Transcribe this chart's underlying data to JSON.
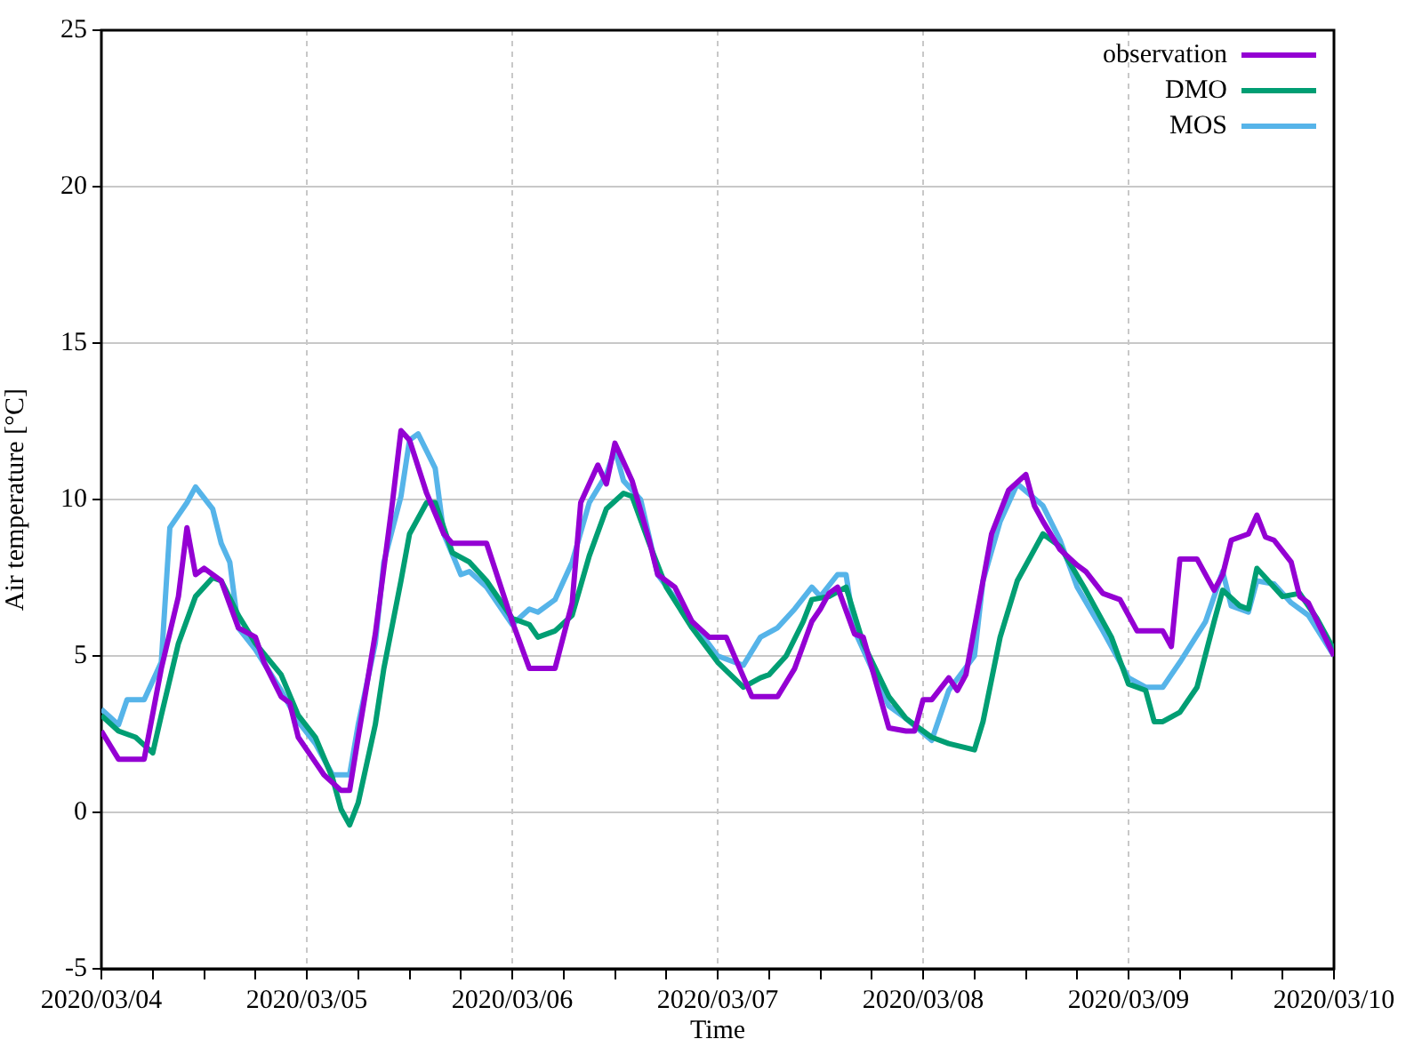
{
  "chart_data": {
    "type": "line",
    "xlabel": "Time",
    "ylabel": "Air temperature [°C]",
    "xlim": [
      "2020-03-04",
      "2020-03-10"
    ],
    "xticks": [
      {
        "value": "2020-03-04",
        "label": "2020/03/04"
      },
      {
        "value": "2020-03-04T06:00",
        "label": null
      },
      {
        "value": "2020-03-04T12:00",
        "label": null
      },
      {
        "value": "2020-03-04T18:00",
        "label": null
      },
      {
        "value": "2020-03-05",
        "label": "2020/03/05"
      },
      {
        "value": "2020-03-05T06:00",
        "label": null
      },
      {
        "value": "2020-03-05T12:00",
        "label": null
      },
      {
        "value": "2020-03-05T18:00",
        "label": null
      },
      {
        "value": "2020-03-06",
        "label": "2020/03/06"
      },
      {
        "value": "2020-03-06T06:00",
        "label": null
      },
      {
        "value": "2020-03-06T12:00",
        "label": null
      },
      {
        "value": "2020-03-06T18:00",
        "label": null
      },
      {
        "value": "2020-03-07",
        "label": "2020/03/07"
      },
      {
        "value": "2020-03-07T06:00",
        "label": null
      },
      {
        "value": "2020-03-07T12:00",
        "label": null
      },
      {
        "value": "2020-03-07T18:00",
        "label": null
      },
      {
        "value": "2020-03-08",
        "label": "2020/03/08"
      },
      {
        "value": "2020-03-08T06:00",
        "label": null
      },
      {
        "value": "2020-03-08T12:00",
        "label": null
      },
      {
        "value": "2020-03-08T18:00",
        "label": null
      },
      {
        "value": "2020-03-09",
        "label": "2020/03/09"
      },
      {
        "value": "2020-03-09T06:00",
        "label": null
      },
      {
        "value": "2020-03-09T12:00",
        "label": null
      },
      {
        "value": "2020-03-09T18:00",
        "label": null
      },
      {
        "value": "2020-03-10",
        "label": "2020/03/10"
      }
    ],
    "ylim": [
      -5,
      25
    ],
    "yticks": [
      -5,
      0,
      5,
      10,
      15,
      20,
      25
    ],
    "grid": true,
    "legend": "top right",
    "series": [
      {
        "name": "observation",
        "color": "#9400d3",
        "x": [
          "2020-03-04T00:00",
          "2020-03-04T02:00",
          "2020-03-04T05:00",
          "2020-03-04T07:00",
          "2020-03-04T09:00",
          "2020-03-04T10:00",
          "2020-03-04T11:00",
          "2020-03-04T12:00",
          "2020-03-04T14:00",
          "2020-03-04T16:00",
          "2020-03-04T18:00",
          "2020-03-04T19:00",
          "2020-03-04T21:00",
          "2020-03-04T22:00",
          "2020-03-04T23:00",
          "2020-03-05T01:00",
          "2020-03-05T02:00",
          "2020-03-05T04:00",
          "2020-03-05T05:00",
          "2020-03-05T06:00",
          "2020-03-05T08:00",
          "2020-03-05T10:00",
          "2020-03-05T11:00",
          "2020-03-05T12:00",
          "2020-03-05T14:00",
          "2020-03-05T16:00",
          "2020-03-05T17:00",
          "2020-03-05T21:00",
          "2020-03-06T00:00",
          "2020-03-06T02:00",
          "2020-03-06T05:00",
          "2020-03-06T07:00",
          "2020-03-06T08:00",
          "2020-03-06T10:00",
          "2020-03-06T11:00",
          "2020-03-06T12:00",
          "2020-03-06T14:00",
          "2020-03-06T16:00",
          "2020-03-06T17:00",
          "2020-03-06T19:00",
          "2020-03-06T21:00",
          "2020-03-06T23:00",
          "2020-03-07T01:00",
          "2020-03-07T04:00",
          "2020-03-07T07:00",
          "2020-03-07T09:00",
          "2020-03-07T11:00",
          "2020-03-07T12:00",
          "2020-03-07T13:00",
          "2020-03-07T14:00",
          "2020-03-07T16:00",
          "2020-03-07T17:00",
          "2020-03-07T20:00",
          "2020-03-07T22:00",
          "2020-03-07T23:00",
          "2020-03-08T00:00",
          "2020-03-08T01:00",
          "2020-03-08T03:00",
          "2020-03-08T04:00",
          "2020-03-08T05:00",
          "2020-03-08T07:00",
          "2020-03-08T08:00",
          "2020-03-08T10:00",
          "2020-03-08T12:00",
          "2020-03-08T13:00",
          "2020-03-08T14:00",
          "2020-03-08T16:00",
          "2020-03-08T18:00",
          "2020-03-08T19:00",
          "2020-03-08T21:00",
          "2020-03-08T23:00",
          "2020-03-09T01:00",
          "2020-03-09T04:00",
          "2020-03-09T05:00",
          "2020-03-09T06:00",
          "2020-03-09T08:00",
          "2020-03-09T10:00",
          "2020-03-09T11:00",
          "2020-03-09T12:00",
          "2020-03-09T14:00",
          "2020-03-09T15:00",
          "2020-03-09T16:00",
          "2020-03-09T17:00",
          "2020-03-09T19:00",
          "2020-03-09T20:00",
          "2020-03-09T21:00",
          "2020-03-10T00:00"
        ],
        "values": [
          2.6,
          1.7,
          1.7,
          4.6,
          6.9,
          9.1,
          7.6,
          7.8,
          7.4,
          5.9,
          5.6,
          4.8,
          3.7,
          3.5,
          2.4,
          1.6,
          1.2,
          0.7,
          0.7,
          2.4,
          5.7,
          9.9,
          12.2,
          11.9,
          10.2,
          8.9,
          8.6,
          8.6,
          6.1,
          4.6,
          4.6,
          6.7,
          9.9,
          11.1,
          10.5,
          11.8,
          10.6,
          8.7,
          7.6,
          7.2,
          6.1,
          5.6,
          5.6,
          3.7,
          3.7,
          4.6,
          6.1,
          6.5,
          7.0,
          7.2,
          5.7,
          5.6,
          2.7,
          2.6,
          2.6,
          3.6,
          3.6,
          4.3,
          3.9,
          4.4,
          7.4,
          8.9,
          10.3,
          10.8,
          9.8,
          9.3,
          8.4,
          7.9,
          7.7,
          7.0,
          6.8,
          5.8,
          5.8,
          5.3,
          8.1,
          8.1,
          7.1,
          7.6,
          8.7,
          8.9,
          9.5,
          8.8,
          8.7,
          8.0,
          6.9,
          6.7,
          5.0
        ]
      },
      {
        "name": "DMO",
        "color": "#009e73",
        "x": [
          "2020-03-04T00:00",
          "2020-03-04T02:00",
          "2020-03-04T04:00",
          "2020-03-04T06:00",
          "2020-03-04T07:00",
          "2020-03-04T09:00",
          "2020-03-04T11:00",
          "2020-03-04T13:00",
          "2020-03-04T14:00",
          "2020-03-04T16:00",
          "2020-03-04T18:00",
          "2020-03-04T21:00",
          "2020-03-04T23:00",
          "2020-03-05T01:00",
          "2020-03-05T03:00",
          "2020-03-05T04:00",
          "2020-03-05T05:00",
          "2020-03-05T06:00",
          "2020-03-05T08:00",
          "2020-03-05T09:00",
          "2020-03-05T11:00",
          "2020-03-05T12:00",
          "2020-03-05T14:00",
          "2020-03-05T15:00",
          "2020-03-05T17:00",
          "2020-03-05T19:00",
          "2020-03-05T21:00",
          "2020-03-06T00:00",
          "2020-03-06T02:00",
          "2020-03-06T03:00",
          "2020-03-06T05:00",
          "2020-03-06T07:00",
          "2020-03-06T09:00",
          "2020-03-06T11:00",
          "2020-03-06T13:00",
          "2020-03-06T14:00",
          "2020-03-06T16:00",
          "2020-03-06T18:00",
          "2020-03-06T21:00",
          "2020-03-07T00:00",
          "2020-03-07T03:00",
          "2020-03-07T05:00",
          "2020-03-07T06:00",
          "2020-03-07T08:00",
          "2020-03-07T10:00",
          "2020-03-07T11:00",
          "2020-03-07T13:00",
          "2020-03-07T15:00",
          "2020-03-07T17:00",
          "2020-03-07T20:00",
          "2020-03-07T22:00",
          "2020-03-08T01:00",
          "2020-03-08T03:00",
          "2020-03-08T06:00",
          "2020-03-08T07:00",
          "2020-03-08T09:00",
          "2020-03-08T11:00",
          "2020-03-08T13:00",
          "2020-03-08T14:00",
          "2020-03-08T16:00",
          "2020-03-08T19:00",
          "2020-03-08T22:00",
          "2020-03-09T00:00",
          "2020-03-09T02:00",
          "2020-03-09T03:00",
          "2020-03-09T04:00",
          "2020-03-09T06:00",
          "2020-03-09T08:00",
          "2020-03-09T10:00",
          "2020-03-09T11:00",
          "2020-03-09T13:00",
          "2020-03-09T14:00",
          "2020-03-09T15:00",
          "2020-03-09T16:00",
          "2020-03-09T18:00",
          "2020-03-09T20:00",
          "2020-03-09T22:00",
          "2020-03-10T00:00"
        ],
        "values": [
          3.1,
          2.6,
          2.4,
          1.9,
          3.1,
          5.4,
          6.9,
          7.5,
          7.4,
          6.3,
          5.4,
          4.4,
          3.1,
          2.4,
          1.1,
          0.1,
          -0.4,
          0.3,
          2.8,
          4.6,
          7.4,
          8.9,
          9.9,
          9.9,
          8.3,
          8.0,
          7.4,
          6.2,
          6.0,
          5.6,
          5.8,
          6.3,
          8.2,
          9.7,
          10.2,
          10.1,
          8.6,
          7.2,
          5.9,
          4.8,
          4.0,
          4.3,
          4.4,
          5.0,
          6.1,
          6.8,
          6.9,
          7.2,
          5.4,
          3.7,
          3.0,
          2.4,
          2.2,
          2.0,
          2.9,
          5.6,
          7.4,
          8.4,
          8.9,
          8.5,
          7.1,
          5.6,
          4.1,
          3.9,
          2.9,
          2.9,
          3.2,
          4.0,
          6.1,
          7.1,
          6.6,
          6.5,
          7.8,
          7.5,
          6.9,
          7.0,
          6.2,
          5.2
        ]
      },
      {
        "name": "MOS",
        "color": "#56b4e9",
        "x": [
          "2020-03-04T00:00",
          "2020-03-04T02:00",
          "2020-03-04T03:00",
          "2020-03-04T05:00",
          "2020-03-04T07:00",
          "2020-03-04T08:00",
          "2020-03-04T10:00",
          "2020-03-04T11:00",
          "2020-03-04T13:00",
          "2020-03-04T14:00",
          "2020-03-04T15:00",
          "2020-03-04T16:00",
          "2020-03-04T18:00",
          "2020-03-04T21:00",
          "2020-03-04T23:00",
          "2020-03-05T01:00",
          "2020-03-05T03:00",
          "2020-03-05T05:00",
          "2020-03-05T06:00",
          "2020-03-05T08:00",
          "2020-03-05T09:00",
          "2020-03-05T11:00",
          "2020-03-05T12:00",
          "2020-03-05T13:00",
          "2020-03-05T15:00",
          "2020-03-05T16:00",
          "2020-03-05T18:00",
          "2020-03-05T19:00",
          "2020-03-05T21:00",
          "2020-03-06T00:00",
          "2020-03-06T02:00",
          "2020-03-06T03:00",
          "2020-03-06T05:00",
          "2020-03-06T07:00",
          "2020-03-06T09:00",
          "2020-03-06T11:00",
          "2020-03-06T12:00",
          "2020-03-06T13:00",
          "2020-03-06T15:00",
          "2020-03-06T17:00",
          "2020-03-06T21:00",
          "2020-03-07T00:00",
          "2020-03-07T03:00",
          "2020-03-07T05:00",
          "2020-03-07T07:00",
          "2020-03-07T09:00",
          "2020-03-07T11:00",
          "2020-03-07T12:00",
          "2020-03-07T14:00",
          "2020-03-07T15:00",
          "2020-03-07T16:00",
          "2020-03-07T20:00",
          "2020-03-07T22:00",
          "2020-03-08T01:00",
          "2020-03-08T03:00",
          "2020-03-08T06:00",
          "2020-03-08T07:00",
          "2020-03-08T09:00",
          "2020-03-08T11:00",
          "2020-03-08T14:00",
          "2020-03-08T16:00",
          "2020-03-08T18:00",
          "2020-03-08T21:00",
          "2020-03-09T00:00",
          "2020-03-09T02:00",
          "2020-03-09T04:00",
          "2020-03-09T06:00",
          "2020-03-09T09:00",
          "2020-03-09T11:00",
          "2020-03-09T12:00",
          "2020-03-09T14:00",
          "2020-03-09T15:00",
          "2020-03-09T17:00",
          "2020-03-09T19:00",
          "2020-03-09T21:00",
          "2020-03-10T00:00"
        ],
        "values": [
          3.3,
          2.8,
          3.6,
          3.6,
          4.8,
          9.1,
          9.9,
          10.4,
          9.7,
          8.6,
          8.0,
          5.9,
          5.2,
          3.9,
          2.9,
          2.2,
          1.2,
          1.2,
          2.8,
          5.4,
          8.0,
          10.1,
          11.9,
          12.1,
          11.0,
          8.9,
          7.6,
          7.7,
          7.2,
          6.0,
          6.5,
          6.4,
          6.8,
          8.0,
          9.9,
          10.8,
          11.6,
          10.6,
          10.0,
          7.6,
          6.1,
          5.0,
          4.7,
          5.6,
          5.9,
          6.5,
          7.2,
          6.9,
          7.6,
          7.6,
          5.8,
          3.4,
          3.0,
          2.3,
          3.9,
          5.0,
          7.4,
          9.3,
          10.5,
          9.8,
          8.7,
          7.2,
          5.8,
          4.3,
          4.0,
          4.0,
          4.8,
          6.1,
          7.7,
          6.6,
          6.4,
          7.4,
          7.3,
          6.7,
          6.3,
          5.0
        ]
      }
    ]
  }
}
